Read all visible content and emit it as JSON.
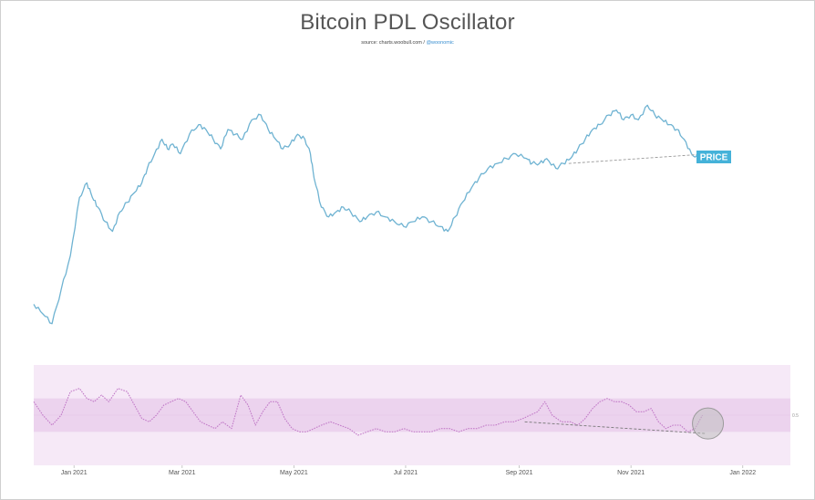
{
  "title": "Bitcoin PDL Oscillator",
  "source_text": "source: charts.woobull.com / ",
  "source_handle": "@woonomic",
  "colors": {
    "price": "#6fb3d2",
    "oscillator": "#c27bc8",
    "band_outer": "#f6e9f7",
    "band_inner": "#ecd3ee",
    "badge": "#45b2d9",
    "trend": "#999999",
    "circle_fill": "#bfbfbf"
  },
  "chart_data": [
    {
      "type": "line",
      "series": [
        {
          "name": "PRICE",
          "x": [
            "2020-12-10",
            "2020-12-15",
            "2020-12-20",
            "2020-12-25",
            "2020-12-30",
            "2021-01-04",
            "2021-01-08",
            "2021-01-11",
            "2021-01-14",
            "2021-01-18",
            "2021-01-22",
            "2021-01-26",
            "2021-01-30",
            "2021-02-03",
            "2021-02-07",
            "2021-02-10",
            "2021-02-14",
            "2021-02-18",
            "2021-02-21",
            "2021-02-24",
            "2021-02-28",
            "2021-03-05",
            "2021-03-10",
            "2021-03-14",
            "2021-03-18",
            "2021-03-22",
            "2021-03-26",
            "2021-03-30",
            "2021-04-03",
            "2021-04-08",
            "2021-04-13",
            "2021-04-17",
            "2021-04-21",
            "2021-04-25",
            "2021-04-29",
            "2021-05-03",
            "2021-05-07",
            "2021-05-10",
            "2021-05-12",
            "2021-05-16",
            "2021-05-20",
            "2021-05-24",
            "2021-05-28",
            "2021-06-01",
            "2021-06-06",
            "2021-06-10",
            "2021-06-15",
            "2021-06-20",
            "2021-06-25",
            "2021-06-30",
            "2021-07-05",
            "2021-07-10",
            "2021-07-15",
            "2021-07-20",
            "2021-07-24",
            "2021-07-28",
            "2021-08-01",
            "2021-08-06",
            "2021-08-10",
            "2021-08-15",
            "2021-08-20",
            "2021-08-25",
            "2021-08-30",
            "2021-09-05",
            "2021-09-08",
            "2021-09-12",
            "2021-09-16",
            "2021-09-21",
            "2021-09-25",
            "2021-09-29",
            "2021-10-03",
            "2021-10-07",
            "2021-10-11",
            "2021-10-15",
            "2021-10-20",
            "2021-10-24",
            "2021-10-28",
            "2021-11-01",
            "2021-11-05",
            "2021-11-10",
            "2021-11-14",
            "2021-11-18",
            "2021-11-22",
            "2021-11-26",
            "2021-11-30",
            "2021-12-04",
            "2021-12-08",
            "2021-12-12"
          ],
          "values": [
            60,
            58,
            56,
            63,
            70,
            82,
            85,
            82,
            80,
            77,
            75,
            79,
            81,
            83,
            85,
            88,
            91,
            94,
            92,
            93,
            91,
            95,
            97,
            96,
            94,
            92,
            96,
            95,
            94,
            98,
            99,
            96,
            94,
            92,
            93,
            95,
            94,
            91,
            86,
            80,
            78,
            79,
            80,
            79,
            77,
            78,
            79,
            78,
            77,
            76,
            77,
            78,
            77,
            76,
            75,
            78,
            81,
            84,
            86,
            88,
            89,
            90,
            91,
            90,
            89,
            89,
            90,
            88,
            89,
            90,
            92,
            94,
            96,
            97,
            99,
            100,
            98,
            99,
            98,
            101,
            99,
            98,
            97,
            96,
            94,
            91,
            90,
            90
          ]
        }
      ]
    },
    {
      "type": "line",
      "series": [
        {
          "name": "PDL Oscillator",
          "x": [
            "2020-12-10",
            "2020-12-15",
            "2020-12-20",
            "2020-12-25",
            "2020-12-30",
            "2021-01-04",
            "2021-01-08",
            "2021-01-12",
            "2021-01-16",
            "2021-01-20",
            "2021-01-25",
            "2021-01-30",
            "2021-02-03",
            "2021-02-07",
            "2021-02-11",
            "2021-02-15",
            "2021-02-19",
            "2021-02-23",
            "2021-02-27",
            "2021-03-03",
            "2021-03-07",
            "2021-03-11",
            "2021-03-15",
            "2021-03-19",
            "2021-03-23",
            "2021-03-28",
            "2021-04-02",
            "2021-04-06",
            "2021-04-10",
            "2021-04-14",
            "2021-04-18",
            "2021-04-22",
            "2021-04-26",
            "2021-04-30",
            "2021-05-04",
            "2021-05-08",
            "2021-05-12",
            "2021-05-16",
            "2021-05-21",
            "2021-05-26",
            "2021-05-31",
            "2021-06-05",
            "2021-06-10",
            "2021-06-15",
            "2021-06-20",
            "2021-06-25",
            "2021-06-30",
            "2021-07-05",
            "2021-07-10",
            "2021-07-15",
            "2021-07-20",
            "2021-07-25",
            "2021-07-30",
            "2021-08-04",
            "2021-08-09",
            "2021-08-14",
            "2021-08-19",
            "2021-08-24",
            "2021-08-29",
            "2021-09-03",
            "2021-09-07",
            "2021-09-11",
            "2021-09-15",
            "2021-09-19",
            "2021-09-24",
            "2021-09-29",
            "2021-10-03",
            "2021-10-07",
            "2021-10-11",
            "2021-10-15",
            "2021-10-19",
            "2021-10-23",
            "2021-10-27",
            "2021-10-31",
            "2021-11-04",
            "2021-11-08",
            "2021-11-12",
            "2021-11-16",
            "2021-11-20",
            "2021-11-24",
            "2021-11-28",
            "2021-12-02",
            "2021-12-06",
            "2021-12-10"
          ],
          "values": [
            0.9,
            0.5,
            0.2,
            0.5,
            1.2,
            1.3,
            1.0,
            0.9,
            1.1,
            0.9,
            1.3,
            1.2,
            0.8,
            0.4,
            0.3,
            0.5,
            0.8,
            0.9,
            1.0,
            0.9,
            0.6,
            0.3,
            0.2,
            0.1,
            0.3,
            0.1,
            1.1,
            0.8,
            0.2,
            0.6,
            0.9,
            0.9,
            0.4,
            0.1,
            0.0,
            0.0,
            0.1,
            0.2,
            0.3,
            0.2,
            0.1,
            -0.1,
            0.0,
            0.1,
            0.0,
            0.0,
            0.1,
            0.0,
            0.0,
            0.0,
            0.1,
            0.1,
            0.0,
            0.1,
            0.1,
            0.2,
            0.2,
            0.3,
            0.3,
            0.4,
            0.5,
            0.6,
            0.9,
            0.5,
            0.3,
            0.3,
            0.2,
            0.4,
            0.7,
            0.9,
            1.0,
            0.9,
            0.9,
            0.8,
            0.6,
            0.6,
            0.7,
            0.3,
            0.1,
            0.2,
            0.2,
            0.0,
            0.1,
            0.5
          ]
        }
      ],
      "band_outer": [
        -1.0,
        2.0
      ],
      "band_inner": [
        0.0,
        1.0
      ],
      "ylim": [
        -1.0,
        2.0
      ]
    }
  ],
  "axis": {
    "x_ticks": [
      {
        "label": "Jan 2021",
        "date": "2021-01-01"
      },
      {
        "label": "Mar 2021",
        "date": "2021-03-01"
      },
      {
        "label": "May 2021",
        "date": "2021-05-01"
      },
      {
        "label": "Jul 2021",
        "date": "2021-07-01"
      },
      {
        "label": "Sep 2021",
        "date": "2021-09-01"
      },
      {
        "label": "Nov 2021",
        "date": "2021-11-01"
      },
      {
        "label": "Jan 2022",
        "date": "2022-01-01"
      }
    ],
    "x_range": [
      "2020-12-10",
      "2022-01-27"
    ],
    "osc_right_label": "0.5",
    "osc_right_label_value": 0.5
  },
  "annotations": {
    "badge": "PRICE",
    "price_trend": [
      {
        "date": "2021-09-28",
        "value": 89
      },
      {
        "date": "2021-12-14",
        "value": 91
      }
    ],
    "osc_trend": [
      {
        "date": "2021-09-04",
        "value": 0.3
      },
      {
        "date": "2021-12-12",
        "value": -0.05
      }
    ],
    "circle": {
      "date": "2021-12-13",
      "value": 0.25
    }
  }
}
